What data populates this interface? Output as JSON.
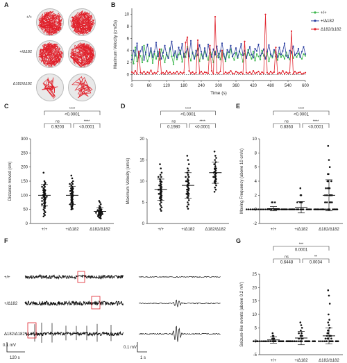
{
  "panels": {
    "A": "A",
    "B": "B",
    "C": "C",
    "D": "D",
    "E": "E",
    "F": "F",
    "G": "G"
  },
  "genotypes": [
    "+/+",
    "+/Δ182",
    "Δ182/Δ182"
  ],
  "colors": {
    "wt": "#39b54a",
    "het": "#2b3ea0",
    "hom": "#e0202a",
    "trace": "#111111",
    "box": "#e0202a"
  },
  "chart_data": [
    {
      "panel": "B",
      "type": "line",
      "xlabel": "Time (s)",
      "ylabel": "Maximum Velocity (cm/5s)",
      "xlim": [
        0,
        600
      ],
      "ylim": [
        -1,
        11
      ],
      "x_ticks": [
        0,
        60,
        120,
        180,
        240,
        300,
        360,
        420,
        480,
        540,
        600
      ],
      "y_ticks": [
        0,
        2,
        4,
        6,
        8,
        10
      ],
      "series": [
        {
          "name": "+/+",
          "values": [
            3.2,
            1.8,
            4.5,
            2.2,
            3.6,
            3.1,
            2.0,
            4.8,
            3.4,
            2.2,
            3.0,
            4.1,
            1.9,
            3.5,
            2.6,
            3.8,
            2.4,
            4.2,
            3.1,
            2.0,
            3.6,
            2.8,
            4.4,
            3.0,
            1.7,
            3.9,
            2.5,
            3.3,
            4.0,
            2.1,
            3.5,
            2.9,
            4.6,
            3.2,
            2.3,
            3.7,
            2.7,
            3.1,
            4.3,
            2.2,
            3.4,
            2.6,
            3.9,
            3.0,
            2.4,
            4.1,
            3.3,
            2.0,
            3.8,
            2.9,
            3.5,
            2.5,
            4.0,
            3.1,
            2.2,
            3.7,
            2.8,
            4.2,
            3.0,
            2.4,
            3.6,
            2.7,
            3.9,
            3.3,
            2.1,
            3.5,
            2.9,
            4.1,
            3.2,
            2.6,
            3.8,
            2.3,
            3.4,
            3.0,
            2.5,
            4.0,
            3.1,
            2.7,
            3.6,
            2.2,
            3.3,
            2.8,
            3.9,
            3.0,
            2.4,
            3.5,
            2.9,
            3.2,
            2.6,
            3.7,
            3.1,
            2.5,
            3.8,
            2.7,
            3.3,
            2.9,
            3.5,
            3.0,
            2.6,
            3.4,
            3.1
          ]
        },
        {
          "name": "+/Δ182",
          "values": [
            2.5,
            4.0,
            3.1,
            5.2,
            2.8,
            3.9,
            4.6,
            2.4,
            3.7,
            5.0,
            3.2,
            4.4,
            2.9,
            3.8,
            5.3,
            3.0,
            4.1,
            2.6,
            3.6,
            4.8,
            3.3,
            2.7,
            4.2,
            5.5,
            3.1,
            3.9,
            2.8,
            4.5,
            3.4,
            5.1,
            2.9,
            3.7,
            4.3,
            3.0,
            5.6,
            3.5,
            2.6,
            4.0,
            3.2,
            4.9,
            3.8,
            2.7,
            4.4,
            3.1,
            5.0,
            3.6,
            2.9,
            4.2,
            3.3,
            4.7,
            2.8,
            3.9,
            5.2,
            3.4,
            2.5,
            4.1,
            3.7,
            4.8,
            3.0,
            3.5,
            4.4,
            2.9,
            3.8,
            5.1,
            3.2,
            4.0,
            2.7,
            3.6,
            4.6,
            3.3,
            2.8,
            4.3,
            3.9,
            5.0,
            3.1,
            3.5,
            4.2,
            2.6,
            3.8,
            4.9,
            3.4,
            3.0,
            4.1,
            3.7,
            2.9,
            4.5,
            3.3,
            3.9,
            5.2,
            3.1,
            2.8,
            4.0,
            3.6,
            4.7,
            3.2,
            3.5,
            4.3,
            2.9,
            3.8,
            4.6,
            3.4
          ]
        },
        {
          "name": "Δ182/Δ182",
          "values": [
            0.4,
            0.2,
            0.6,
            0.1,
            3.8,
            0.3,
            0.2,
            0.5,
            0.1,
            0.4,
            0.2,
            0.7,
            0.1,
            0.3,
            0.2,
            0.5,
            4.2,
            0.2,
            0.3,
            0.1,
            0.6,
            0.2,
            0.4,
            0.1,
            0.3,
            0.2,
            0.5,
            0.1,
            0.4,
            0.2,
            0.3,
            5.3,
            6.2,
            0.6,
            0.2,
            0.4,
            0.1,
            0.3,
            5.7,
            0.2,
            0.5,
            0.1,
            0.4,
            0.3,
            0.2,
            4.8,
            0.6,
            0.1,
            9.6,
            0.3,
            0.2,
            0.5,
            4.0,
            0.1,
            0.4,
            0.2,
            0.3,
            0.6,
            0.2,
            0.1,
            0.5,
            0.3,
            0.2,
            0.4,
            0.1,
            5.5,
            0.3,
            0.2,
            0.4,
            0.1,
            0.6,
            0.2,
            0.3,
            0.5,
            0.1,
            0.4,
            0.2,
            10.0,
            0.3,
            0.1,
            0.5,
            0.2,
            0.4,
            4.5,
            0.1,
            0.3,
            0.2,
            0.6,
            0.1,
            0.4,
            0.2,
            0.3,
            7.2,
            0.1,
            0.5,
            0.2,
            0.3,
            0.4,
            0.1,
            0.2,
            0.3
          ]
        }
      ]
    },
    {
      "panel": "C",
      "type": "scatter",
      "ylabel": "Distance moved (cm)",
      "categories": [
        "+/+",
        "+/Δ182",
        "Δ182/Δ182"
      ],
      "ylim": [
        0,
        300
      ],
      "y_ticks": [
        0,
        50,
        100,
        150,
        200,
        250,
        300
      ],
      "means": [
        100,
        100,
        43
      ],
      "sd": [
        38,
        32,
        12
      ],
      "points": [
        [
          180,
          150,
          140,
          135,
          130,
          125,
          120,
          118,
          115,
          112,
          110,
          108,
          105,
          103,
          100,
          99,
          97,
          95,
          94,
          92,
          90,
          88,
          86,
          84,
          82,
          80,
          78,
          75,
          72,
          70,
          68,
          65,
          62,
          58,
          55,
          50,
          45,
          40,
          35,
          30,
          25,
          100,
          95,
          90,
          118,
          130,
          138,
          145
        ],
        [
          170,
          160,
          150,
          145,
          140,
          135,
          130,
          125,
          122,
          120,
          118,
          115,
          112,
          110,
          108,
          105,
          103,
          100,
          98,
          96,
          94,
          92,
          90,
          88,
          86,
          84,
          82,
          80,
          78,
          76,
          74,
          72,
          70,
          68,
          65,
          62,
          60,
          58,
          55,
          52,
          50,
          105,
          95,
          115,
          125,
          140
        ],
        [
          80,
          75,
          68,
          62,
          58,
          55,
          52,
          50,
          48,
          47,
          46,
          45,
          44,
          43,
          42,
          41,
          40,
          39,
          38,
          37,
          36,
          35,
          34,
          33,
          32,
          30,
          29,
          28,
          26,
          24,
          22,
          20,
          18,
          45,
          40,
          38,
          50,
          35,
          30
        ]
      ],
      "sig": [
        {
          "label": "****",
          "p": "<0.0001"
        },
        {
          "label": "ns",
          "p": "0.9203"
        },
        {
          "label": "****",
          "p": "<0.0001"
        }
      ]
    },
    {
      "panel": "D",
      "type": "scatter",
      "ylabel": "Maximum Velocity (cm/s)",
      "categories": [
        "+/+",
        "+/Δ182",
        "Δ182/Δ182"
      ],
      "ylim": [
        0,
        20
      ],
      "y_ticks": [
        0,
        5,
        10,
        15,
        20
      ],
      "means": [
        8,
        9,
        12
      ],
      "sd": [
        2.5,
        3,
        2.5
      ],
      "points": [
        [
          14,
          13,
          12,
          11.5,
          11,
          10.5,
          10,
          9.8,
          9.5,
          9.2,
          9,
          8.8,
          8.6,
          8.4,
          8.2,
          8,
          7.8,
          7.6,
          7.4,
          7.2,
          7,
          6.8,
          6.6,
          6.4,
          6.2,
          6,
          5.8,
          5.6,
          5.4,
          5,
          4.6,
          4.2,
          3.8,
          3.4,
          3,
          8,
          9,
          10,
          7,
          6,
          11
        ],
        [
          16,
          15,
          14,
          13,
          12.5,
          12,
          11.5,
          11,
          10.5,
          10.2,
          10,
          9.8,
          9.5,
          9.2,
          9,
          8.8,
          8.5,
          8.2,
          8,
          7.8,
          7.5,
          7.2,
          7,
          6.8,
          6.5,
          6.2,
          6,
          5.5,
          5,
          4.5,
          4,
          3.5,
          9,
          10,
          8,
          11,
          7,
          12
        ],
        [
          17,
          16,
          15.5,
          15,
          14.5,
          14,
          13.5,
          13,
          12.8,
          12.5,
          12.2,
          12,
          11.8,
          11.5,
          11.2,
          11,
          10.8,
          10.5,
          10.2,
          10,
          9.8,
          9.5,
          9,
          8.5,
          8,
          7.5,
          12,
          13,
          11,
          14
        ]
      ],
      "sig": [
        {
          "label": "****",
          "p": "<0.0001"
        },
        {
          "label": "ns",
          "p": "0.1980"
        },
        {
          "label": "****",
          "p": "<0.0001"
        }
      ]
    },
    {
      "panel": "E",
      "type": "scatter",
      "ylabel": "Moving Frequency (above 10 cm/s)",
      "categories": [
        "+/+",
        "+/Δ182",
        "Δ182/Δ182"
      ],
      "ylim": [
        -2,
        10
      ],
      "y_ticks": [
        -2,
        0,
        2,
        4,
        6,
        8,
        10
      ],
      "means": [
        0.1,
        0.3,
        2.0
      ],
      "sd": [
        0.3,
        0.8,
        2.2
      ],
      "points": [
        [
          1,
          1,
          0,
          0,
          0,
          0,
          0,
          0,
          0,
          0,
          0,
          0,
          0,
          0,
          0,
          0,
          0,
          0,
          0,
          0,
          0,
          0,
          0,
          0,
          0,
          0,
          0,
          0,
          0,
          0,
          0,
          0,
          0,
          0,
          0,
          0,
          1
        ],
        [
          3,
          2,
          2,
          1,
          1,
          1,
          0,
          0,
          0,
          0,
          0,
          0,
          0,
          0,
          0,
          0,
          0,
          0,
          0,
          0,
          0,
          0,
          0,
          0,
          0,
          0,
          0,
          0,
          0,
          0,
          0,
          0,
          0,
          0,
          0,
          1
        ],
        [
          9,
          7,
          6,
          5,
          5,
          4,
          4,
          4,
          3,
          3,
          3,
          3,
          2,
          2,
          2,
          2,
          2,
          1,
          1,
          1,
          1,
          1,
          1,
          0,
          0,
          0,
          0,
          0,
          0,
          0,
          0,
          0,
          0,
          0,
          0,
          0
        ]
      ],
      "sig": [
        {
          "label": "****",
          "p": "<0.0001"
        },
        {
          "label": "ns",
          "p": "0.8363"
        },
        {
          "label": "****",
          "p": "<0.0001"
        }
      ]
    },
    {
      "panel": "G",
      "type": "scatter",
      "ylabel": "Seizure-like events (above 0.2 mV)",
      "categories": [
        "+/+",
        "+/Δ182",
        "Δ182/Δ182"
      ],
      "ylim": [
        -5,
        25
      ],
      "y_ticks": [
        -5,
        0,
        5,
        10,
        15,
        20,
        25
      ],
      "means": [
        0.5,
        1.2,
        2.0
      ],
      "sd": [
        1.2,
        2.5,
        3.0
      ],
      "points": [
        [
          3,
          2,
          2,
          1,
          1,
          1,
          0,
          0,
          0,
          0,
          0,
          0,
          0,
          0,
          0,
          0,
          0,
          0,
          0,
          0,
          0,
          0,
          0,
          0,
          0,
          0,
          0,
          0,
          0,
          0,
          0,
          0
        ],
        [
          7,
          6,
          5,
          4,
          3,
          3,
          2,
          2,
          2,
          1,
          1,
          1,
          1,
          0,
          0,
          0,
          0,
          0,
          0,
          0,
          0,
          0,
          0,
          0,
          0,
          0,
          0,
          0,
          0,
          0,
          0,
          0
        ],
        [
          19,
          17,
          14,
          10,
          8,
          7,
          6,
          5,
          4,
          4,
          3,
          3,
          2,
          2,
          2,
          1,
          1,
          1,
          1,
          0,
          0,
          0,
          0,
          0,
          0,
          0,
          0,
          0,
          0,
          0,
          0,
          0
        ]
      ],
      "sig": [
        {
          "label": "***",
          "p": "0.0001"
        },
        {
          "label": "ns",
          "p": "0.6448"
        },
        {
          "label": "**",
          "p": "0.0034"
        }
      ]
    }
  ],
  "panel_f": {
    "left_scale": {
      "v": "0.1 mV",
      "t": "120 s"
    },
    "right_scale": {
      "v": "0.1 mV",
      "t": "1 s"
    }
  }
}
